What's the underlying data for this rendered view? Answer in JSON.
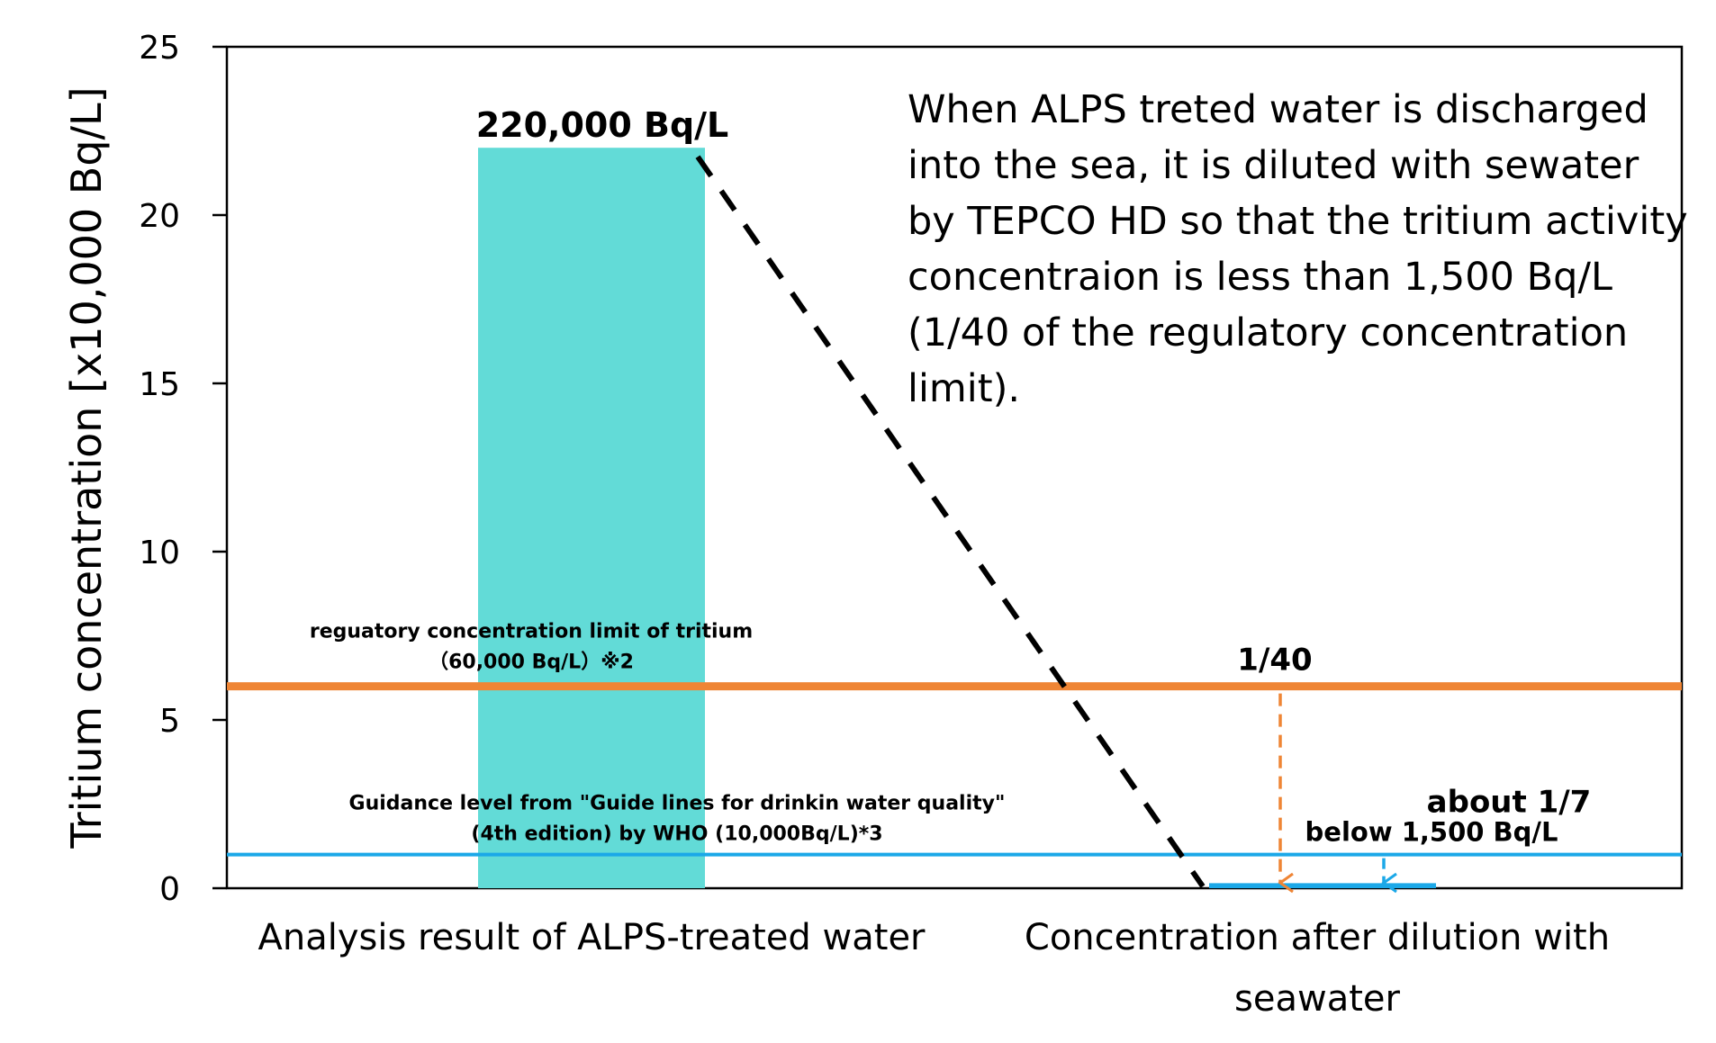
{
  "chart_data": {
    "type": "bar",
    "categories": [
      "Analysis result of ALPS-treated water",
      "Concentration after dilution with seawater"
    ],
    "category_lines": [
      [
        "Analysis result of ALPS-treated water"
      ],
      [
        "Concentration after dilution with",
        "seawater"
      ]
    ],
    "values": [
      22,
      0.15
    ],
    "ylim": [
      0,
      25
    ],
    "yticks": [
      0,
      5,
      10,
      15,
      20,
      25
    ],
    "ylabel": "Tritium concentration [x10,000 Bq/L]",
    "xlabel": "",
    "title": "",
    "bar_color": "#62dbd7",
    "bar_value_label": "220,000 Bq/L",
    "reference_lines": [
      {
        "value": 6,
        "color": "#ef8535",
        "label_lines": [
          "reguatory concentration limit of tritium",
          "（60,000 Bq/L）※2"
        ]
      },
      {
        "value": 1,
        "color": "#1ba8e8",
        "label_lines": [
          "Guidance level from \"Guide lines for drinkin  water quality\"",
          "(4th edition) by WHO (10,000Bq/L)*3"
        ]
      }
    ],
    "dilution": {
      "color": "#1ba8e8",
      "ratio_regulatory": "1/40",
      "ratio_who": "about 1/7",
      "diluted_label": "below 1,500 Bq/L",
      "value": 0.15
    },
    "note_lines": [
      "When ALPS treted water is discharged",
      "into the sea, it is diluted with sewater",
      "by TEPCO HD so that the tritium activity",
      "concentraion is less than 1,500 Bq/L",
      "(1/40 of the regulatory concentration",
      "limit)."
    ],
    "grid": false,
    "legend": "none"
  }
}
